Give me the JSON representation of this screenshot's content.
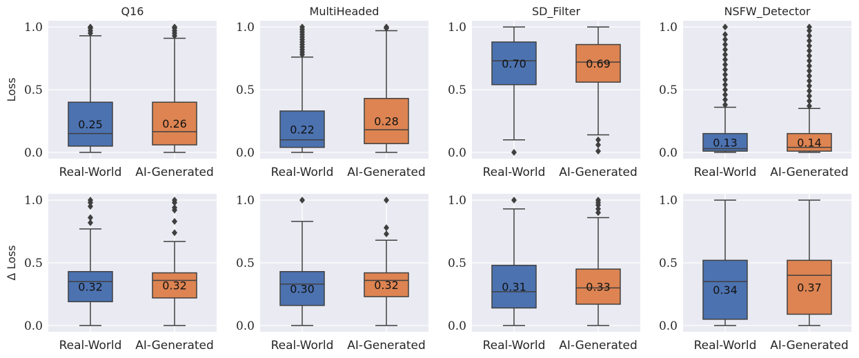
{
  "chart_data": {
    "type": "box",
    "categories": [
      "Real-World",
      "AI-Generated"
    ],
    "colors": {
      "Real-World": "#4c72b0",
      "AI-Generated": "#dd8452"
    },
    "ylim": [
      -0.05,
      1.05
    ],
    "yticks": [
      "0.0",
      "0.5",
      "1.0"
    ],
    "panels": [
      {
        "row": 0,
        "col": 0,
        "title": "Q16",
        "ylabel": "Loss",
        "boxes": [
          {
            "category": "Real-World",
            "min": 0.0,
            "q1": 0.05,
            "median": 0.15,
            "q3": 0.4,
            "max": 0.93,
            "fliers": [
              0.95,
              0.97,
              0.99,
              1.0
            ],
            "label": "0.25"
          },
          {
            "category": "AI-Generated",
            "min": 0.0,
            "q1": 0.06,
            "median": 0.165,
            "q3": 0.4,
            "max": 0.91,
            "fliers": [
              0.93,
              0.95,
              0.97,
              0.99,
              1.0
            ],
            "label": "0.26"
          }
        ]
      },
      {
        "row": 0,
        "col": 1,
        "title": "MultiHeaded",
        "ylabel": "",
        "boxes": [
          {
            "category": "Real-World",
            "min": 0.0,
            "q1": 0.04,
            "median": 0.1,
            "q3": 0.33,
            "max": 0.76,
            "fliers": [
              0.78,
              0.8,
              0.82,
              0.84,
              0.86,
              0.88,
              0.9,
              0.92,
              0.94,
              0.96,
              0.98,
              1.0
            ],
            "label": "0.22"
          },
          {
            "category": "AI-Generated",
            "min": 0.0,
            "q1": 0.07,
            "median": 0.18,
            "q3": 0.43,
            "max": 0.97,
            "fliers": [
              0.99,
              1.0
            ],
            "label": "0.28"
          }
        ]
      },
      {
        "row": 0,
        "col": 2,
        "title": "SD_Filter",
        "ylabel": "",
        "boxes": [
          {
            "category": "Real-World",
            "min": 0.1,
            "q1": 0.54,
            "median": 0.73,
            "q3": 0.88,
            "max": 1.0,
            "fliers": [
              0.0
            ],
            "label": "0.70"
          },
          {
            "category": "AI-Generated",
            "min": 0.14,
            "q1": 0.56,
            "median": 0.72,
            "q3": 0.86,
            "max": 1.0,
            "fliers": [
              0.1,
              0.06,
              0.01
            ],
            "label": "0.69"
          }
        ]
      },
      {
        "row": 0,
        "col": 3,
        "title": "NSFW_Detector",
        "ylabel": "",
        "boxes": [
          {
            "category": "Real-World",
            "min": 0.0,
            "q1": 0.01,
            "median": 0.03,
            "q3": 0.15,
            "max": 0.36,
            "fliers": [
              0.38,
              0.42,
              0.46,
              0.5,
              0.54,
              0.58,
              0.62,
              0.66,
              0.7,
              0.74,
              0.78,
              0.82,
              0.86,
              0.9,
              0.94,
              1.0
            ],
            "label": "0.13"
          },
          {
            "category": "AI-Generated",
            "min": 0.0,
            "q1": 0.01,
            "median": 0.04,
            "q3": 0.15,
            "max": 0.35,
            "fliers": [
              0.37,
              0.41,
              0.45,
              0.49,
              0.53,
              0.57,
              0.61,
              0.65,
              0.69,
              0.73,
              0.77,
              0.81,
              0.85,
              0.89,
              0.93,
              0.97,
              1.0
            ],
            "label": "0.14"
          }
        ]
      },
      {
        "row": 1,
        "col": 0,
        "title": "",
        "ylabel": "Δ Loss",
        "boxes": [
          {
            "category": "Real-World",
            "min": 0.0,
            "q1": 0.19,
            "median": 0.35,
            "q3": 0.43,
            "max": 0.77,
            "fliers": [
              0.82,
              0.86,
              0.95,
              0.98,
              1.0
            ],
            "label": "0.32"
          },
          {
            "category": "AI-Generated",
            "min": 0.0,
            "q1": 0.22,
            "median": 0.36,
            "q3": 0.42,
            "max": 0.67,
            "fliers": [
              0.74,
              0.83,
              0.92,
              0.94,
              0.98,
              1.0
            ],
            "label": "0.32"
          }
        ]
      },
      {
        "row": 1,
        "col": 1,
        "title": "",
        "ylabel": "",
        "boxes": [
          {
            "category": "Real-World",
            "min": 0.0,
            "q1": 0.16,
            "median": 0.33,
            "q3": 0.43,
            "max": 0.83,
            "fliers": [
              1.0
            ],
            "label": "0.30"
          },
          {
            "category": "AI-Generated",
            "min": 0.0,
            "q1": 0.23,
            "median": 0.36,
            "q3": 0.42,
            "max": 0.68,
            "fliers": [
              0.73,
              0.78,
              1.0
            ],
            "label": "0.32"
          }
        ]
      },
      {
        "row": 1,
        "col": 2,
        "title": "",
        "ylabel": "",
        "boxes": [
          {
            "category": "Real-World",
            "min": 0.0,
            "q1": 0.14,
            "median": 0.27,
            "q3": 0.48,
            "max": 0.93,
            "fliers": [
              1.0
            ],
            "label": "0.31"
          },
          {
            "category": "AI-Generated",
            "min": 0.0,
            "q1": 0.17,
            "median": 0.3,
            "q3": 0.45,
            "max": 0.86,
            "fliers": [
              0.9,
              0.93,
              0.96,
              0.98,
              1.0
            ],
            "label": "0.33"
          }
        ]
      },
      {
        "row": 1,
        "col": 3,
        "title": "",
        "ylabel": "",
        "boxes": [
          {
            "category": "Real-World",
            "min": 0.0,
            "q1": 0.05,
            "median": 0.35,
            "q3": 0.52,
            "max": 1.0,
            "fliers": [],
            "label": "0.34"
          },
          {
            "category": "AI-Generated",
            "min": 0.0,
            "q1": 0.09,
            "median": 0.4,
            "q3": 0.52,
            "max": 1.0,
            "fliers": [],
            "label": "0.37"
          }
        ]
      }
    ]
  }
}
